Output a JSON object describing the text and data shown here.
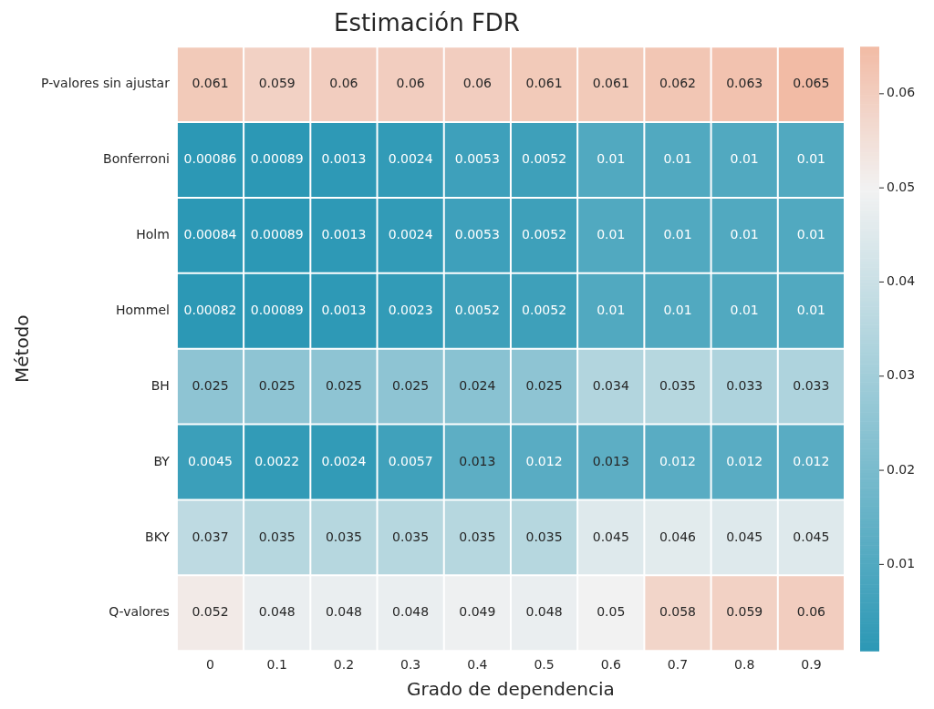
{
  "chart_data": {
    "type": "heatmap",
    "title": "Estimación FDR",
    "xlabel": "Grado de dependencia",
    "ylabel": "Método",
    "categories": [
      "0",
      "0.1",
      "0.2",
      "0.3",
      "0.4",
      "0.5",
      "0.6",
      "0.7",
      "0.8",
      "0.9"
    ],
    "y_categories": [
      "P-valores sin ajustar",
      "Bonferroni",
      "Holm",
      "Hommel",
      "BH",
      "BY",
      "BKY",
      "Q-valores"
    ],
    "cells": [
      [
        0.061,
        0.059,
        0.06,
        0.06,
        0.06,
        0.061,
        0.061,
        0.062,
        0.063,
        0.065
      ],
      [
        0.00086,
        0.00089,
        0.0013,
        0.0024,
        0.0053,
        0.0052,
        0.01,
        0.01,
        0.01,
        0.01
      ],
      [
        0.00084,
        0.00089,
        0.0013,
        0.0024,
        0.0053,
        0.0052,
        0.01,
        0.01,
        0.01,
        0.01
      ],
      [
        0.00082,
        0.00089,
        0.0013,
        0.0023,
        0.0052,
        0.0052,
        0.01,
        0.01,
        0.01,
        0.01
      ],
      [
        0.025,
        0.025,
        0.025,
        0.025,
        0.024,
        0.025,
        0.034,
        0.035,
        0.033,
        0.033
      ],
      [
        0.0045,
        0.0022,
        0.0024,
        0.0057,
        0.013,
        0.012,
        0.013,
        0.012,
        0.012,
        0.012
      ],
      [
        0.037,
        0.035,
        0.035,
        0.035,
        0.035,
        0.035,
        0.045,
        0.046,
        0.045,
        0.045
      ],
      [
        0.052,
        0.048,
        0.048,
        0.048,
        0.049,
        0.048,
        0.05,
        0.058,
        0.059,
        0.06
      ]
    ],
    "data_labels": true,
    "clim": [
      0.00082,
      0.065
    ],
    "cticks": [
      0.01,
      0.02,
      0.03,
      0.04,
      0.05,
      0.06
    ]
  }
}
